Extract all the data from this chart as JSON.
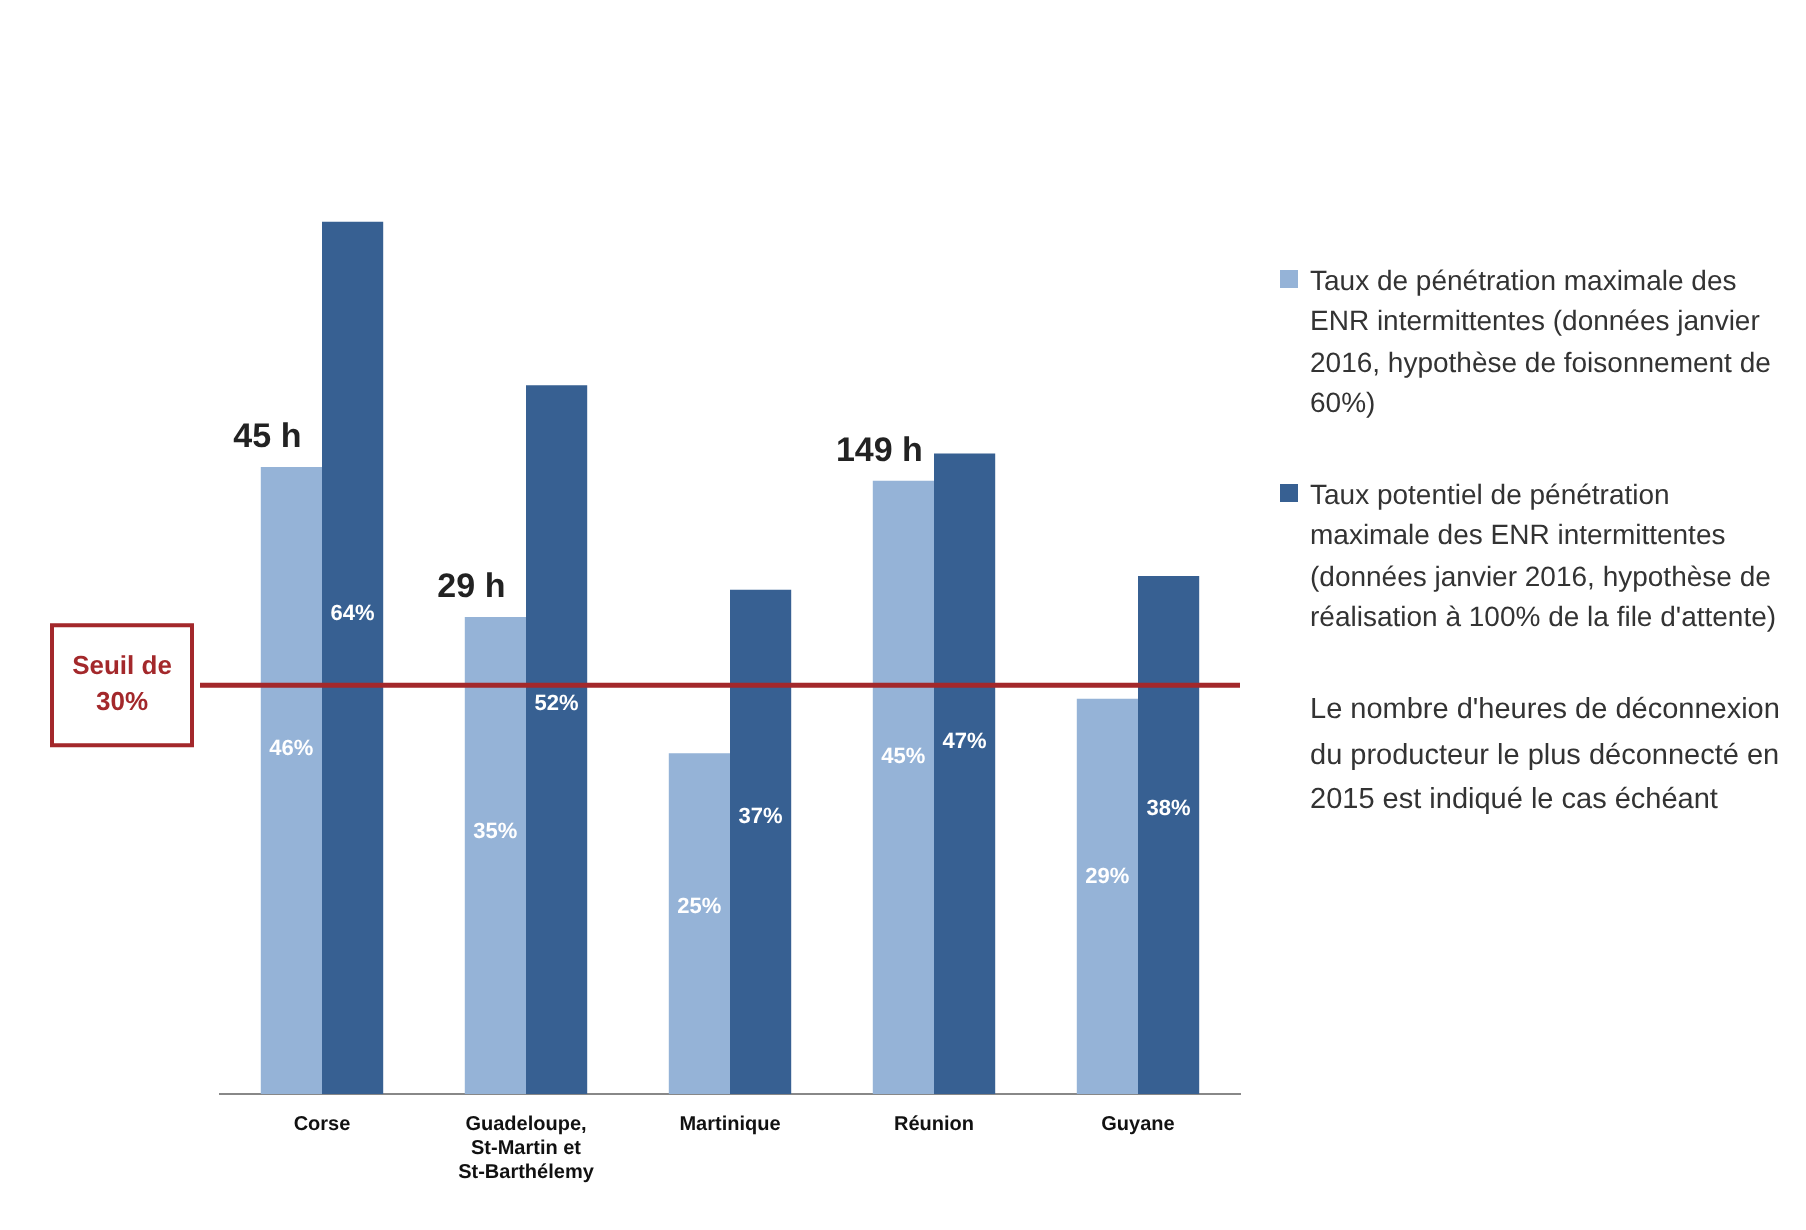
{
  "chart_data": {
    "type": "bar",
    "categories": [
      "Corse",
      "Guadeloupe, St-Martin et St-Barthélemy",
      "Martinique",
      "Réunion",
      "Guyane"
    ],
    "series": [
      {
        "name": "Taux de pénétration maximale des ENR intermittentes (données janvier 2016, hypothèse de foisonnement de 60%)",
        "color": "#95b3d7",
        "values": [
          46,
          35,
          25,
          45,
          29
        ],
        "value_labels": [
          "46%",
          "35%",
          "25%",
          "45%",
          "29%"
        ]
      },
      {
        "name": "Taux potentiel de pénétration maximale des ENR intermittentes (données janvier 2016, hypothèse de réalisation à 100% de la file d'attente)",
        "color": "#376092",
        "values": [
          64,
          52,
          37,
          47,
          38
        ],
        "value_labels": [
          "64%",
          "52%",
          "37%",
          "47%",
          "38%"
        ]
      }
    ],
    "ref_lines": [
      {
        "axis": "y",
        "value": 30,
        "label": "Seuil de 30%",
        "color": "#a3282b"
      }
    ],
    "annotations": [
      {
        "text": "45 h",
        "x": "Corse",
        "y": 46
      },
      {
        "text": "29 h",
        "x": "Guadeloupe, St-Martin et St-Barthélemy",
        "y": 35
      },
      {
        "text": "149 h",
        "x": "Réunion",
        "y": 45
      },
      "Le nombre d'heures de déconnexion du producteur le plus déconnecté en 2015 est indiqué le cas échéant"
    ],
    "legend": "right",
    "grid": false,
    "tick_labels": "x"
  }
}
